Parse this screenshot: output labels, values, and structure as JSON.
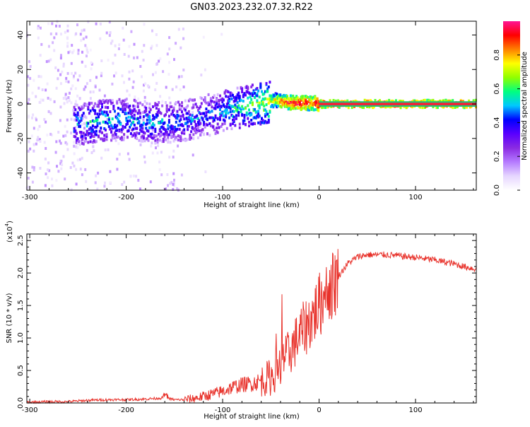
{
  "title": "GN03.2023.232.07.32.R22",
  "colors": {
    "snr_line": "#e8322b",
    "plot_background": "#ffffff",
    "axes": "#000000",
    "colormap": [
      "#ffffff",
      "#e6d6ff",
      "#b57bff",
      "#8a2be2",
      "#5a00ff",
      "#0000ff",
      "#00c8ff",
      "#00ff80",
      "#90ff00",
      "#ffff00",
      "#ff8000",
      "#ff0000",
      "#ff1493"
    ]
  },
  "colorbar": {
    "label": "Normalized spectral amplitude",
    "ticks": [
      "0.0",
      "0.2",
      "0.4",
      "0.6",
      "0.8"
    ]
  },
  "chart_data": [
    {
      "type": "heatmap",
      "title": "GN03.2023.232.07.32.R22",
      "xlabel": "Height of straight line (km)",
      "ylabel": "Frequency (Hz)",
      "xlim": [
        -303,
        163
      ],
      "ylim": [
        -50,
        48
      ],
      "xticks": [
        "-300",
        "-200",
        "-100",
        "0",
        "100"
      ],
      "yticks": [
        "40",
        "20",
        "0",
        "-20",
        "-40"
      ],
      "zlim": [
        0,
        1
      ],
      "ridge": {
        "x": [
          -250,
          -230,
          -200,
          -170,
          -140,
          -110,
          -90,
          -70,
          -55,
          -45,
          -35,
          -20,
          -5,
          0,
          50,
          100,
          163
        ],
        "frequency": [
          -12,
          -10,
          -9,
          -11,
          -10,
          -6,
          -3,
          -1,
          1,
          2,
          1,
          0.5,
          0.5,
          0,
          0,
          0,
          0
        ],
        "amplitude": [
          0.5,
          0.55,
          0.5,
          0.5,
          0.45,
          0.45,
          0.55,
          0.6,
          0.7,
          0.8,
          0.9,
          0.95,
          0.9,
          1.0,
          1.0,
          1.0,
          1.0
        ]
      }
    },
    {
      "type": "line",
      "xlabel": "Height of straight line (km)",
      "ylabel": "SNR (10 * v/v)",
      "y_multiplier": "(x10^4)",
      "y_multiplier_base": "(x10",
      "y_multiplier_exp": "4",
      "xlim": [
        -303,
        163
      ],
      "ylim": [
        0,
        2.6
      ],
      "xticks": [
        "-300",
        "-200",
        "-100",
        "0",
        "100"
      ],
      "yticks": [
        "0.0",
        "0.5",
        "1.0",
        "1.5",
        "2.0",
        "2.5"
      ],
      "series": [
        {
          "x": [
            -303,
            -280,
            -260,
            -240,
            -220,
            -200,
            -180,
            -160,
            -150,
            -140,
            -130,
            -120,
            -110,
            -100,
            -90,
            -80,
            -70,
            -60,
            -50,
            -40,
            -30,
            -20,
            -10,
            0,
            10,
            20,
            30,
            40,
            50,
            60,
            70,
            80,
            90,
            100,
            110,
            120,
            130,
            140,
            150,
            163
          ],
          "values": [
            0.01,
            0.02,
            0.02,
            0.04,
            0.05,
            0.05,
            0.06,
            0.08,
            0.05,
            0.05,
            0.07,
            0.1,
            0.14,
            0.18,
            0.24,
            0.28,
            0.3,
            0.34,
            0.4,
            0.55,
            0.8,
            1.05,
            1.25,
            1.5,
            1.75,
            1.95,
            2.15,
            2.25,
            2.28,
            2.28,
            2.28,
            2.27,
            2.25,
            2.24,
            2.22,
            2.2,
            2.17,
            2.14,
            2.1,
            2.06
          ]
        }
      ]
    }
  ]
}
